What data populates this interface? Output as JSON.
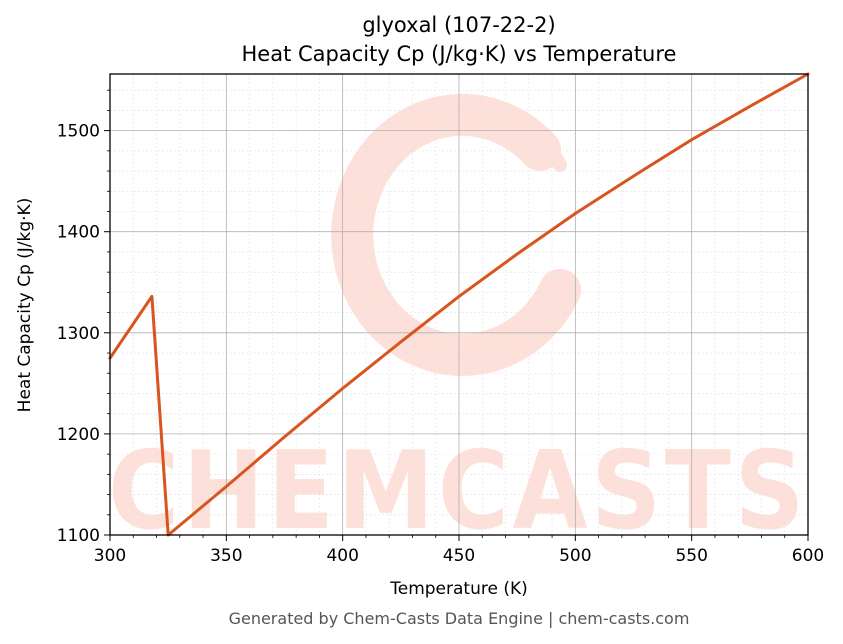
{
  "chart_data": {
    "type": "line",
    "title": "glyoxal (107-22-2)",
    "subtitle": "Heat Capacity Cp (J/kg·K) vs Temperature",
    "xlabel": "Temperature (K)",
    "ylabel": "Heat Capacity Cp (J/kg·K)",
    "xlim": [
      300,
      600
    ],
    "ylim": [
      1100,
      1556
    ],
    "x_ticks": [
      300,
      350,
      400,
      450,
      500,
      550,
      600
    ],
    "y_ticks": [
      1100,
      1200,
      1300,
      1400,
      1500
    ],
    "grid": true,
    "series": [
      {
        "color": "#d9541e",
        "x": [
          300,
          318,
          325,
          350,
          375,
          400,
          425,
          450,
          475,
          500,
          525,
          550,
          575,
          600
        ],
        "y": [
          1275,
          1336,
          1100,
          1148,
          1197,
          1245,
          1291,
          1336,
          1378,
          1418,
          1455,
          1491,
          1524,
          1556
        ]
      }
    ]
  },
  "watermark": {
    "text": "CHEMCASTS",
    "color": "#fde0da"
  },
  "footer": "Generated by Chem-Casts Data Engine | chem-casts.com"
}
